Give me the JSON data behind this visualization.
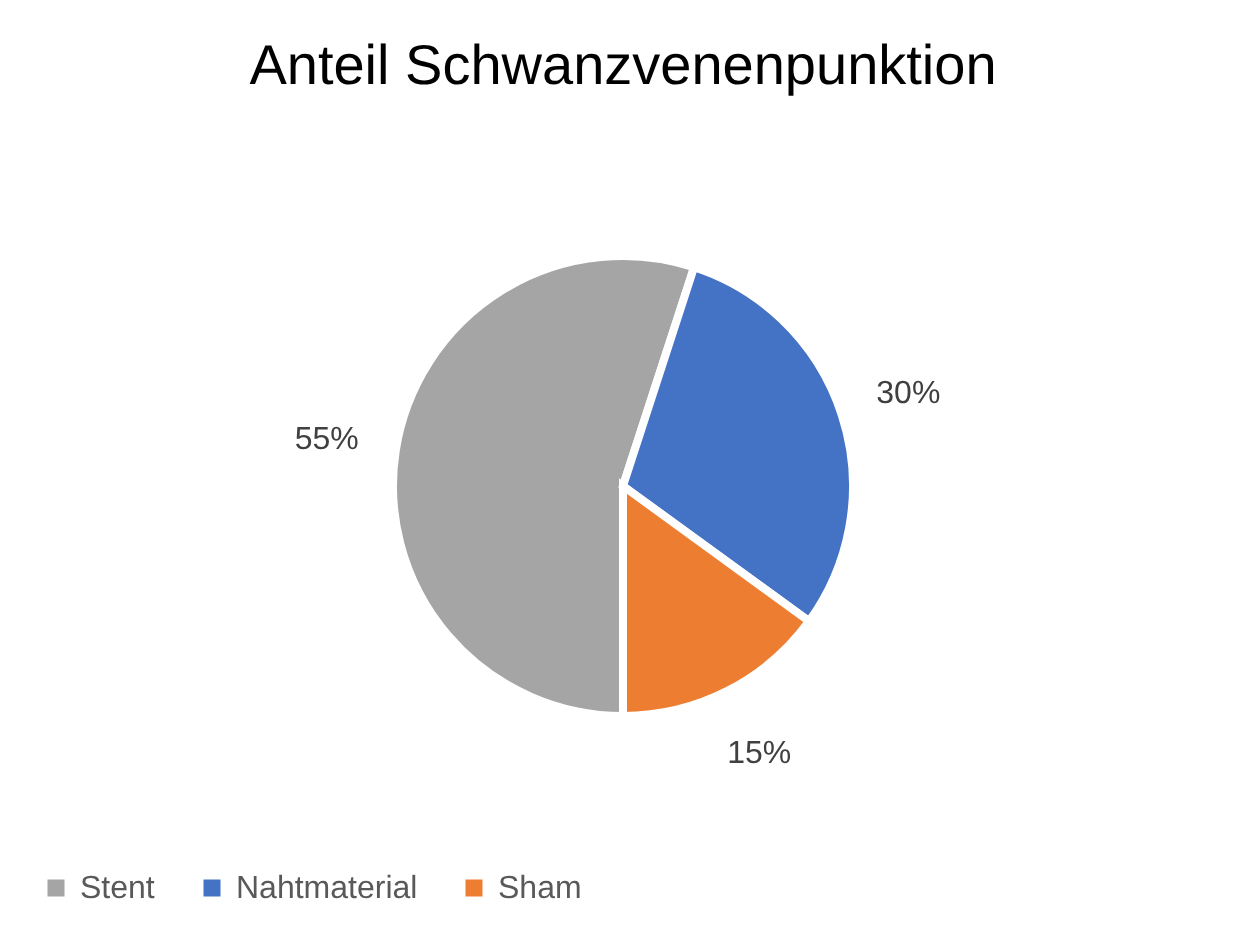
{
  "chart_data": {
    "type": "pie",
    "title": "Anteil Schwanzvenenpunktion",
    "categories": [
      "Stent",
      "Nahtmaterial",
      "Sham"
    ],
    "values": [
      55,
      30,
      15
    ],
    "colors": [
      "#a5a5a5",
      "#4472c4",
      "#ed7d31"
    ],
    "value_labels": [
      "55%",
      "30%",
      "15%"
    ],
    "legend": "bottom"
  }
}
